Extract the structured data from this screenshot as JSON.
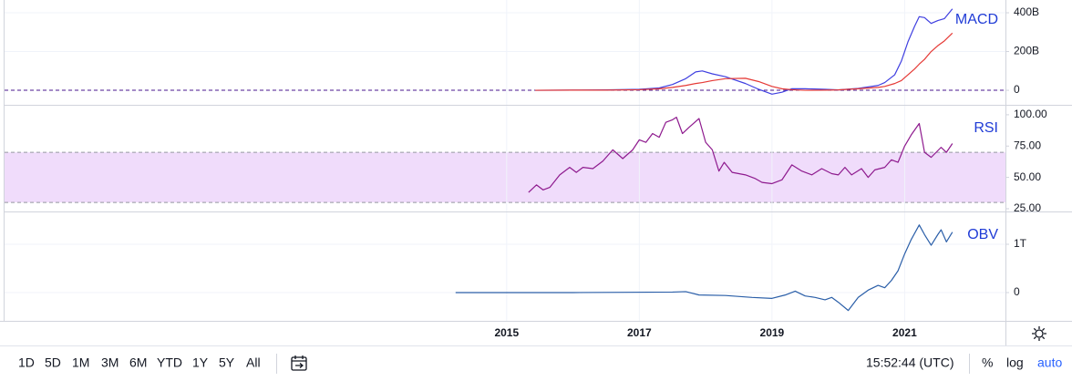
{
  "chart_data": [
    {
      "type": "line",
      "title": "MACD",
      "xlim": [
        2007.43,
        2022.52
      ],
      "ylim": [
        -75,
        466
      ],
      "yticks": [
        {
          "value": 0,
          "label": "0"
        },
        {
          "value": 200,
          "label": "200B"
        },
        {
          "value": 400,
          "label": "400B"
        }
      ],
      "x": [
        2015.43,
        2016,
        2016.5,
        2017,
        2017.3,
        2017.5,
        2017.7,
        2017.85,
        2017.95,
        2018.1,
        2018.3,
        2018.6,
        2018.8,
        2019.0,
        2019.15,
        2019.3,
        2019.5,
        2019.8,
        2020.0,
        2020.3,
        2020.6,
        2020.7,
        2020.85,
        2020.95,
        2021.05,
        2021.15,
        2021.22,
        2021.3,
        2021.4,
        2021.5,
        2021.6,
        2021.72
      ],
      "series": [
        {
          "color": "#3f3fe0",
          "values": [
            0,
            1,
            2,
            5,
            12,
            30,
            60,
            95,
            100,
            85,
            70,
            35,
            5,
            -20,
            -10,
            8,
            8,
            5,
            2,
            10,
            25,
            40,
            80,
            150,
            250,
            330,
            380,
            375,
            345,
            360,
            370,
            420
          ]
        },
        {
          "color": "#e53935",
          "values": [
            0,
            1,
            1,
            3,
            8,
            15,
            25,
            35,
            40,
            50,
            60,
            62,
            45,
            20,
            8,
            3,
            0,
            1,
            2,
            8,
            15,
            20,
            35,
            50,
            80,
            110,
            135,
            160,
            200,
            230,
            255,
            295
          ]
        }
      ]
    },
    {
      "type": "line",
      "title": "RSI",
      "xlim": [
        2007.43,
        2022.52
      ],
      "ylim": [
        22.8,
        107.2
      ],
      "band": [
        30,
        70
      ],
      "band_color": "#f0dcfb",
      "yticks": [
        {
          "value": 25,
          "label": "25.00"
        },
        {
          "value": 50,
          "label": "50.00"
        },
        {
          "value": 75,
          "label": "75.00"
        },
        {
          "value": 100,
          "label": "100.00"
        }
      ],
      "x": [
        2015.33,
        2015.45,
        2015.55,
        2015.65,
        2015.8,
        2015.95,
        2016.05,
        2016.15,
        2016.3,
        2016.45,
        2016.6,
        2016.75,
        2016.9,
        2017.0,
        2017.1,
        2017.2,
        2017.3,
        2017.4,
        2017.5,
        2017.56,
        2017.65,
        2017.75,
        2017.9,
        2018.0,
        2018.1,
        2018.2,
        2018.28,
        2018.4,
        2018.6,
        2018.75,
        2018.85,
        2019.0,
        2019.15,
        2019.3,
        2019.45,
        2019.6,
        2019.75,
        2019.9,
        2020.0,
        2020.1,
        2020.2,
        2020.35,
        2020.45,
        2020.55,
        2020.7,
        2020.8,
        2020.9,
        2021.0,
        2021.1,
        2021.22,
        2021.3,
        2021.4,
        2021.55,
        2021.63,
        2021.72
      ],
      "series": [
        {
          "color": "#8e1a8e",
          "values": [
            38,
            44,
            40,
            42,
            52,
            58,
            54,
            58,
            57,
            63,
            72,
            65,
            72,
            80,
            78,
            85,
            82,
            94,
            96,
            98,
            85,
            90,
            97,
            78,
            72,
            55,
            62,
            54,
            52,
            49,
            46,
            45,
            48,
            60,
            55,
            52,
            57,
            53,
            52,
            58,
            52,
            57,
            50,
            56,
            58,
            64,
            62,
            75,
            84,
            93,
            70,
            66,
            74,
            70,
            77
          ]
        }
      ]
    },
    {
      "type": "line",
      "title": "OBV",
      "xlim": [
        2007.43,
        2022.52
      ],
      "ylim": [
        -0.585,
        1.66
      ],
      "yticks": [
        {
          "value": 0,
          "label": "0"
        },
        {
          "value": 1,
          "label": "1T"
        }
      ],
      "xticks": [
        2015,
        2017,
        2019,
        2021
      ],
      "x": [
        2014.23,
        2016,
        2017.5,
        2017.7,
        2017.9,
        2018.3,
        2018.7,
        2019.0,
        2019.2,
        2019.35,
        2019.5,
        2019.65,
        2019.8,
        2019.9,
        2020.0,
        2020.15,
        2020.3,
        2020.45,
        2020.6,
        2020.7,
        2020.8,
        2020.9,
        2021.0,
        2021.1,
        2021.22,
        2021.3,
        2021.4,
        2021.5,
        2021.55,
        2021.63,
        2021.72
      ],
      "series": [
        {
          "color": "#2a5ea8",
          "values": [
            0,
            0,
            0.01,
            0.02,
            -0.05,
            -0.06,
            -0.1,
            -0.12,
            -0.05,
            0.03,
            -0.07,
            -0.1,
            -0.15,
            -0.1,
            -0.2,
            -0.37,
            -0.1,
            0.05,
            0.15,
            0.1,
            0.25,
            0.45,
            0.8,
            1.1,
            1.4,
            1.2,
            0.98,
            1.2,
            1.3,
            1.05,
            1.25
          ]
        }
      ]
    }
  ],
  "toolbar": {
    "ranges": [
      "1D",
      "5D",
      "1M",
      "3M",
      "6M",
      "YTD",
      "1Y",
      "5Y",
      "All"
    ],
    "time": "15:52:44 (UTC)",
    "percent": "%",
    "log": "log",
    "auto": "auto"
  }
}
